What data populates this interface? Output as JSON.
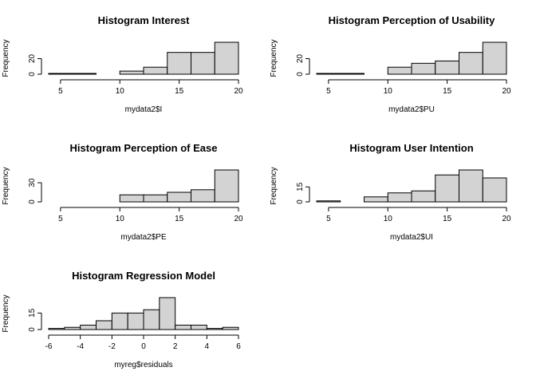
{
  "colors": {
    "bar_fill": "#d3d3d3",
    "bar_stroke": "#000000",
    "axis": "#000000"
  },
  "chart_data": [
    {
      "type": "bar",
      "title": "Histogram Interest",
      "xlabel": "mydata2$I",
      "ylabel": "Frequency",
      "bin_edges": [
        4,
        6,
        8,
        10,
        12,
        14,
        16,
        18,
        20
      ],
      "values": [
        1,
        1,
        0,
        4,
        9,
        28,
        28,
        41
      ],
      "xlim": [
        4,
        20
      ],
      "ylim": [
        0,
        41
      ],
      "xticks": [
        5,
        10,
        15,
        20
      ],
      "yticks": [
        0,
        20
      ],
      "grid": false
    },
    {
      "type": "bar",
      "title": "Histogram Perception of Usability",
      "xlabel": "mydata2$PU",
      "ylabel": "Frequency",
      "bin_edges": [
        4,
        6,
        8,
        10,
        12,
        14,
        16,
        18,
        20
      ],
      "values": [
        1,
        1,
        0,
        9,
        14,
        17,
        28,
        41
      ],
      "xlim": [
        4,
        20
      ],
      "ylim": [
        0,
        41
      ],
      "xticks": [
        5,
        10,
        15,
        20
      ],
      "yticks": [
        0,
        20
      ],
      "grid": false
    },
    {
      "type": "bar",
      "title": "Histogram Perception of Ease",
      "xlabel": "mydata2$PE",
      "ylabel": "Frequency",
      "bin_edges": [
        4,
        6,
        8,
        10,
        12,
        14,
        16,
        18,
        20
      ],
      "values": [
        0,
        0,
        0,
        11,
        11,
        15,
        19,
        50
      ],
      "xlim": [
        4,
        20
      ],
      "ylim": [
        0,
        50
      ],
      "xticks": [
        5,
        10,
        15,
        20
      ],
      "yticks": [
        0,
        30
      ],
      "grid": false
    },
    {
      "type": "bar",
      "title": "Histogram User Intention",
      "xlabel": "mydata2$UI",
      "ylabel": "Frequency",
      "bin_edges": [
        4,
        6,
        8,
        10,
        12,
        14,
        16,
        18,
        20
      ],
      "values": [
        1,
        0,
        5,
        9,
        11,
        27,
        32,
        24
      ],
      "xlim": [
        4,
        20
      ],
      "ylim": [
        0,
        32
      ],
      "xticks": [
        5,
        10,
        15,
        20
      ],
      "yticks": [
        0,
        15
      ],
      "grid": false
    },
    {
      "type": "bar",
      "title": "Histogram Regression Model",
      "xlabel": "myreg$residuals",
      "ylabel": "Frequency",
      "bin_edges": [
        -6,
        -5,
        -4,
        -3,
        -2,
        -1,
        0,
        1,
        2,
        3,
        4,
        5,
        6
      ],
      "values": [
        1,
        2,
        4,
        8,
        15,
        15,
        18,
        29,
        4,
        4,
        1,
        2
      ],
      "xlim": [
        -6,
        6
      ],
      "ylim": [
        0,
        29
      ],
      "xticks": [
        -6,
        -4,
        -2,
        0,
        2,
        4,
        6
      ],
      "yticks": [
        0,
        15
      ],
      "grid": false
    }
  ]
}
